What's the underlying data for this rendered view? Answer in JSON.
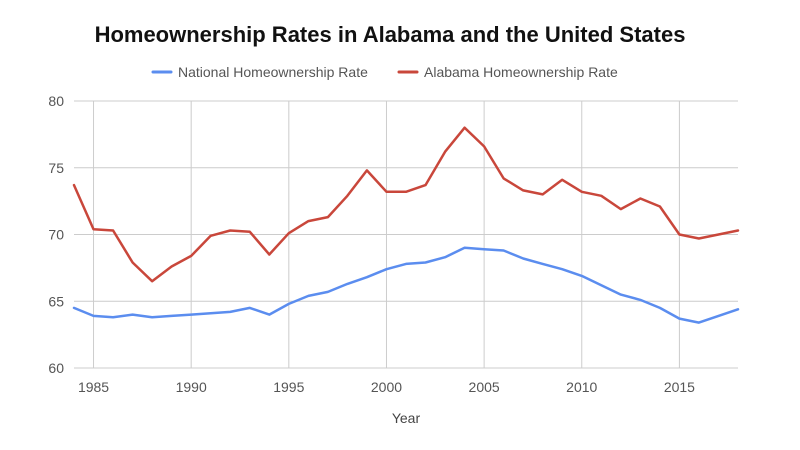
{
  "chart_data": {
    "type": "line",
    "title": "Homeownership Rates in Alabama and the United States",
    "xlabel": "Year",
    "ylabel": "",
    "xlim": [
      1984,
      2018
    ],
    "ylim": [
      60,
      80
    ],
    "x_ticks": [
      1985,
      1990,
      1995,
      2000,
      2005,
      2010,
      2015
    ],
    "y_ticks": [
      60,
      65,
      70,
      75,
      80
    ],
    "grid": true,
    "legend_position": "top",
    "x": [
      1984,
      1985,
      1986,
      1987,
      1988,
      1989,
      1990,
      1991,
      1992,
      1993,
      1994,
      1995,
      1996,
      1997,
      1998,
      1999,
      2000,
      2001,
      2002,
      2003,
      2004,
      2005,
      2006,
      2007,
      2008,
      2009,
      2010,
      2011,
      2012,
      2013,
      2014,
      2015,
      2016,
      2017,
      2018
    ],
    "series": [
      {
        "name": "National Homeownership Rate",
        "color": "#5b8def",
        "values": [
          64.5,
          63.9,
          63.8,
          64.0,
          63.8,
          63.9,
          64.0,
          64.1,
          64.2,
          64.5,
          64.0,
          64.8,
          65.4,
          65.7,
          66.3,
          66.8,
          67.4,
          67.8,
          67.9,
          68.3,
          69.0,
          68.9,
          68.8,
          68.2,
          67.8,
          67.4,
          66.9,
          66.2,
          65.5,
          65.1,
          64.5,
          63.7,
          63.4,
          63.9,
          64.4
        ]
      },
      {
        "name": "Alabama Homeownership Rate",
        "color": "#c9473b",
        "values": [
          73.7,
          70.4,
          70.3,
          67.9,
          66.5,
          67.6,
          68.4,
          69.9,
          70.3,
          70.2,
          68.5,
          70.1,
          71.0,
          71.3,
          72.9,
          74.8,
          73.2,
          73.2,
          73.7,
          76.2,
          78.0,
          76.6,
          74.2,
          73.3,
          73.0,
          74.1,
          73.2,
          72.9,
          71.9,
          72.7,
          72.1,
          70.0,
          69.7,
          70.0,
          70.3
        ]
      }
    ]
  }
}
